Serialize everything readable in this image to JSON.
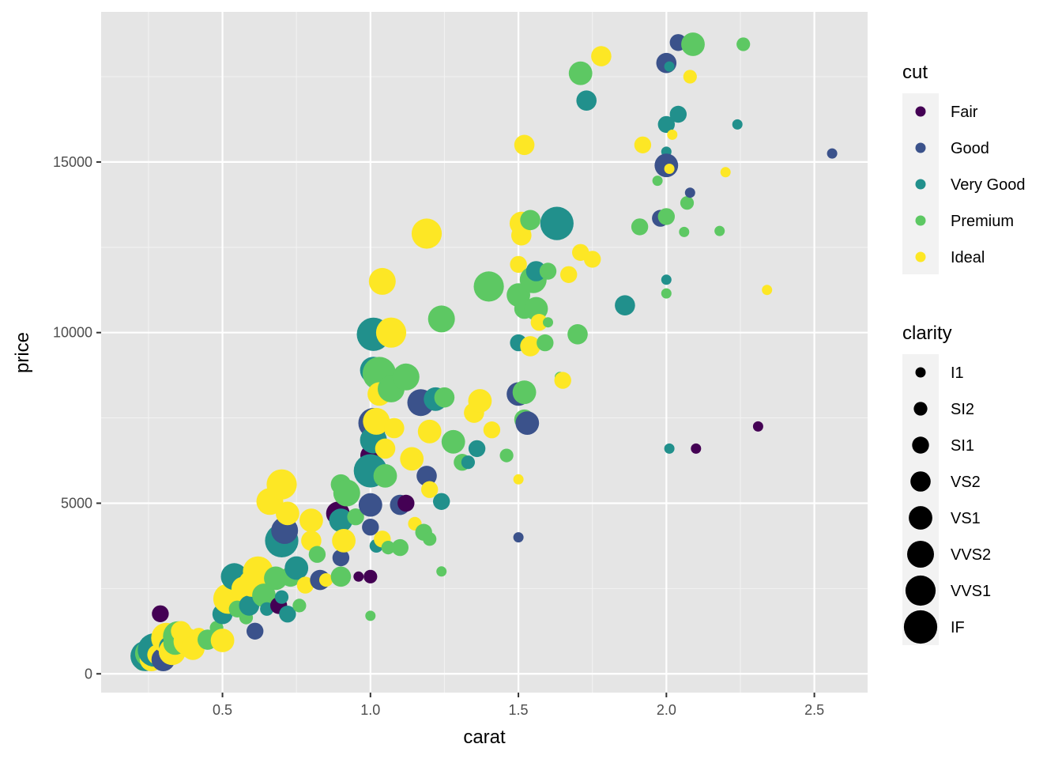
{
  "chart_data": {
    "type": "scatter",
    "xlabel": "carat",
    "ylabel": "price",
    "xlim": [
      0.09,
      2.68
    ],
    "ylim": [
      -550,
      19400
    ],
    "x_ticks": [
      0.5,
      1.0,
      1.5,
      2.0,
      2.5
    ],
    "x_tick_labels": [
      "0.5",
      "1.0",
      "1.5",
      "2.0",
      "2.5"
    ],
    "y_ticks": [
      0,
      5000,
      10000,
      15000
    ],
    "y_tick_labels": [
      "0",
      "5000",
      "10000",
      "15000"
    ],
    "grid": true,
    "background": "#e5e5e5",
    "color_legend": {
      "title": "cut",
      "position": "right",
      "entries": [
        {
          "label": "Fair",
          "color": "#440154"
        },
        {
          "label": "Good",
          "color": "#3b528b"
        },
        {
          "label": "Very Good",
          "color": "#21908c"
        },
        {
          "label": "Premium",
          "color": "#5dc863"
        },
        {
          "label": "Ideal",
          "color": "#fde725"
        }
      ]
    },
    "size_legend": {
      "title": "clarity",
      "position": "right",
      "entries": [
        "I1",
        "SI2",
        "SI1",
        "VS2",
        "VS1",
        "VVS2",
        "VVS1",
        "IF"
      ]
    },
    "points": [
      {
        "x": 0.23,
        "y": 340,
        "cut": "Premium",
        "clarity": "SI1"
      },
      {
        "x": 0.24,
        "y": 520,
        "cut": "Very Good",
        "clarity": "VVS1"
      },
      {
        "x": 0.25,
        "y": 600,
        "cut": "Premium",
        "clarity": "VVS2"
      },
      {
        "x": 0.26,
        "y": 420,
        "cut": "Ideal",
        "clarity": "VS1"
      },
      {
        "x": 0.27,
        "y": 700,
        "cut": "Very Good",
        "clarity": "IF"
      },
      {
        "x": 0.28,
        "y": 560,
        "cut": "Ideal",
        "clarity": "VS2"
      },
      {
        "x": 0.29,
        "y": 1760,
        "cut": "Fair",
        "clarity": "SI1"
      },
      {
        "x": 0.3,
        "y": 420,
        "cut": "Good",
        "clarity": "VS1"
      },
      {
        "x": 0.31,
        "y": 1050,
        "cut": "Ideal",
        "clarity": "VVS1"
      },
      {
        "x": 0.32,
        "y": 800,
        "cut": "Very Good",
        "clarity": "VS2"
      },
      {
        "x": 0.33,
        "y": 650,
        "cut": "Ideal",
        "clarity": "VVS2"
      },
      {
        "x": 0.34,
        "y": 900,
        "cut": "Premium",
        "clarity": "VS1"
      },
      {
        "x": 0.35,
        "y": 1100,
        "cut": "Premium",
        "clarity": "VVS1"
      },
      {
        "x": 0.36,
        "y": 1250,
        "cut": "Ideal",
        "clarity": "VS2"
      },
      {
        "x": 0.38,
        "y": 950,
        "cut": "Ideal",
        "clarity": "VVS2"
      },
      {
        "x": 0.4,
        "y": 750,
        "cut": "Ideal",
        "clarity": "VS1"
      },
      {
        "x": 0.42,
        "y": 1100,
        "cut": "Ideal",
        "clarity": "SI1"
      },
      {
        "x": 0.45,
        "y": 1000,
        "cut": "Premium",
        "clarity": "VS2"
      },
      {
        "x": 0.48,
        "y": 1350,
        "cut": "Premium",
        "clarity": "SI2"
      },
      {
        "x": 0.5,
        "y": 980,
        "cut": "Ideal",
        "clarity": "VS1"
      },
      {
        "x": 0.5,
        "y": 1750,
        "cut": "Very Good",
        "clarity": "VS2"
      },
      {
        "x": 0.52,
        "y": 2200,
        "cut": "Ideal",
        "clarity": "VVS1"
      },
      {
        "x": 0.54,
        "y": 2850,
        "cut": "Very Good",
        "clarity": "VVS2"
      },
      {
        "x": 0.55,
        "y": 1900,
        "cut": "Premium",
        "clarity": "SI1"
      },
      {
        "x": 0.57,
        "y": 2500,
        "cut": "Ideal",
        "clarity": "VS1"
      },
      {
        "x": 0.58,
        "y": 1650,
        "cut": "Premium",
        "clarity": "SI2"
      },
      {
        "x": 0.59,
        "y": 2000,
        "cut": "Very Good",
        "clarity": "VS2"
      },
      {
        "x": 0.6,
        "y": 2650,
        "cut": "Ideal",
        "clarity": "VVS2"
      },
      {
        "x": 0.61,
        "y": 1250,
        "cut": "Good",
        "clarity": "SI1"
      },
      {
        "x": 0.62,
        "y": 3000,
        "cut": "Ideal",
        "clarity": "VVS1"
      },
      {
        "x": 0.64,
        "y": 2300,
        "cut": "Premium",
        "clarity": "VS1"
      },
      {
        "x": 0.65,
        "y": 1900,
        "cut": "Very Good",
        "clarity": "SI2"
      },
      {
        "x": 0.66,
        "y": 5050,
        "cut": "Ideal",
        "clarity": "VVS2"
      },
      {
        "x": 0.68,
        "y": 2800,
        "cut": "Premium",
        "clarity": "VS1"
      },
      {
        "x": 0.69,
        "y": 2000,
        "cut": "Fair",
        "clarity": "SI1"
      },
      {
        "x": 0.7,
        "y": 5550,
        "cut": "Ideal",
        "clarity": "VVS1"
      },
      {
        "x": 0.7,
        "y": 3900,
        "cut": "Very Good",
        "clarity": "IF"
      },
      {
        "x": 0.7,
        "y": 2250,
        "cut": "Very Good",
        "clarity": "SI2"
      },
      {
        "x": 0.71,
        "y": 4200,
        "cut": "Good",
        "clarity": "VVS2"
      },
      {
        "x": 0.72,
        "y": 4700,
        "cut": "Ideal",
        "clarity": "VS1"
      },
      {
        "x": 0.72,
        "y": 1750,
        "cut": "Very Good",
        "clarity": "SI1"
      },
      {
        "x": 0.73,
        "y": 2850,
        "cut": "Premium",
        "clarity": "VS2"
      },
      {
        "x": 0.75,
        "y": 3100,
        "cut": "Very Good",
        "clarity": "VS1"
      },
      {
        "x": 0.76,
        "y": 2000,
        "cut": "Premium",
        "clarity": "SI2"
      },
      {
        "x": 0.78,
        "y": 2600,
        "cut": "Ideal",
        "clarity": "SI1"
      },
      {
        "x": 0.8,
        "y": 4500,
        "cut": "Ideal",
        "clarity": "VS1"
      },
      {
        "x": 0.8,
        "y": 3900,
        "cut": "Ideal",
        "clarity": "VS2"
      },
      {
        "x": 0.82,
        "y": 3500,
        "cut": "Premium",
        "clarity": "SI1"
      },
      {
        "x": 0.83,
        "y": 2750,
        "cut": "Good",
        "clarity": "VS2"
      },
      {
        "x": 0.85,
        "y": 2750,
        "cut": "Ideal",
        "clarity": "SI2"
      },
      {
        "x": 0.89,
        "y": 4700,
        "cut": "Fair",
        "clarity": "VS1"
      },
      {
        "x": 0.9,
        "y": 5550,
        "cut": "Premium",
        "clarity": "VS2"
      },
      {
        "x": 0.9,
        "y": 4500,
        "cut": "Very Good",
        "clarity": "VS1"
      },
      {
        "x": 0.9,
        "y": 3400,
        "cut": "Good",
        "clarity": "SI1"
      },
      {
        "x": 0.9,
        "y": 2850,
        "cut": "Premium",
        "clarity": "VS2"
      },
      {
        "x": 0.91,
        "y": 3900,
        "cut": "Ideal",
        "clarity": "VS1"
      },
      {
        "x": 0.92,
        "y": 5300,
        "cut": "Premium",
        "clarity": "VVS2"
      },
      {
        "x": 0.95,
        "y": 4600,
        "cut": "Premium",
        "clarity": "SI1"
      },
      {
        "x": 0.96,
        "y": 2850,
        "cut": "Fair",
        "clarity": "I1"
      },
      {
        "x": 1.0,
        "y": 2850,
        "cut": "Fair",
        "clarity": "SI2"
      },
      {
        "x": 1.0,
        "y": 1700,
        "cut": "Premium",
        "clarity": "I1"
      },
      {
        "x": 1.0,
        "y": 6400,
        "cut": "Fair",
        "clarity": "VS2"
      },
      {
        "x": 1.0,
        "y": 5950,
        "cut": "Very Good",
        "clarity": "IF"
      },
      {
        "x": 1.0,
        "y": 4950,
        "cut": "Good",
        "clarity": "VS1"
      },
      {
        "x": 1.0,
        "y": 4300,
        "cut": "Good",
        "clarity": "SI1"
      },
      {
        "x": 1.01,
        "y": 9950,
        "cut": "Very Good",
        "clarity": "IF"
      },
      {
        "x": 1.01,
        "y": 8900,
        "cut": "Very Good",
        "clarity": "VVS2"
      },
      {
        "x": 1.01,
        "y": 7350,
        "cut": "Good",
        "clarity": "VVS1"
      },
      {
        "x": 1.01,
        "y": 6850,
        "cut": "Very Good",
        "clarity": "VVS2"
      },
      {
        "x": 1.02,
        "y": 7400,
        "cut": "Ideal",
        "clarity": "VVS2"
      },
      {
        "x": 1.02,
        "y": 3750,
        "cut": "Very Good",
        "clarity": "SI2"
      },
      {
        "x": 1.03,
        "y": 8800,
        "cut": "Premium",
        "clarity": "IF"
      },
      {
        "x": 1.03,
        "y": 8200,
        "cut": "Ideal",
        "clarity": "VS1"
      },
      {
        "x": 1.04,
        "y": 11500,
        "cut": "Ideal",
        "clarity": "VVS2"
      },
      {
        "x": 1.04,
        "y": 3950,
        "cut": "Ideal",
        "clarity": "SI1"
      },
      {
        "x": 1.05,
        "y": 6600,
        "cut": "Ideal",
        "clarity": "VS2"
      },
      {
        "x": 1.05,
        "y": 5800,
        "cut": "Premium",
        "clarity": "VS1"
      },
      {
        "x": 1.06,
        "y": 3700,
        "cut": "Premium",
        "clarity": "SI2"
      },
      {
        "x": 1.07,
        "y": 10000,
        "cut": "Ideal",
        "clarity": "VVS1"
      },
      {
        "x": 1.07,
        "y": 8350,
        "cut": "Premium",
        "clarity": "VVS2"
      },
      {
        "x": 1.08,
        "y": 7200,
        "cut": "Ideal",
        "clarity": "VS2"
      },
      {
        "x": 1.1,
        "y": 4950,
        "cut": "Good",
        "clarity": "VS2"
      },
      {
        "x": 1.1,
        "y": 3700,
        "cut": "Premium",
        "clarity": "SI1"
      },
      {
        "x": 1.12,
        "y": 8700,
        "cut": "Premium",
        "clarity": "VVS2"
      },
      {
        "x": 1.12,
        "y": 5000,
        "cut": "Fair",
        "clarity": "SI1"
      },
      {
        "x": 1.14,
        "y": 6300,
        "cut": "Ideal",
        "clarity": "VS1"
      },
      {
        "x": 1.15,
        "y": 4400,
        "cut": "Ideal",
        "clarity": "SI2"
      },
      {
        "x": 1.17,
        "y": 7950,
        "cut": "Good",
        "clarity": "VVS2"
      },
      {
        "x": 1.18,
        "y": 4150,
        "cut": "Premium",
        "clarity": "SI1"
      },
      {
        "x": 1.19,
        "y": 12900,
        "cut": "Ideal",
        "clarity": "VVS1"
      },
      {
        "x": 1.19,
        "y": 5800,
        "cut": "Good",
        "clarity": "VS2"
      },
      {
        "x": 1.2,
        "y": 7100,
        "cut": "Ideal",
        "clarity": "VS1"
      },
      {
        "x": 1.2,
        "y": 5400,
        "cut": "Ideal",
        "clarity": "SI1"
      },
      {
        "x": 1.2,
        "y": 3950,
        "cut": "Premium",
        "clarity": "SI2"
      },
      {
        "x": 1.22,
        "y": 8050,
        "cut": "Very Good",
        "clarity": "VS1"
      },
      {
        "x": 1.24,
        "y": 10400,
        "cut": "Premium",
        "clarity": "VVS2"
      },
      {
        "x": 1.24,
        "y": 5050,
        "cut": "Very Good",
        "clarity": "SI1"
      },
      {
        "x": 1.24,
        "y": 3000,
        "cut": "Premium",
        "clarity": "I1"
      },
      {
        "x": 1.25,
        "y": 8100,
        "cut": "Premium",
        "clarity": "VS2"
      },
      {
        "x": 1.28,
        "y": 6800,
        "cut": "Premium",
        "clarity": "VS1"
      },
      {
        "x": 1.31,
        "y": 6200,
        "cut": "Premium",
        "clarity": "SI1"
      },
      {
        "x": 1.33,
        "y": 6200,
        "cut": "Very Good",
        "clarity": "SI2"
      },
      {
        "x": 1.35,
        "y": 7650,
        "cut": "Ideal",
        "clarity": "VS2"
      },
      {
        "x": 1.37,
        "y": 8000,
        "cut": "Ideal",
        "clarity": "VS1"
      },
      {
        "x": 1.36,
        "y": 6600,
        "cut": "Very Good",
        "clarity": "SI1"
      },
      {
        "x": 1.4,
        "y": 11350,
        "cut": "Premium",
        "clarity": "VVS1"
      },
      {
        "x": 1.41,
        "y": 7150,
        "cut": "Ideal",
        "clarity": "SI1"
      },
      {
        "x": 1.46,
        "y": 6400,
        "cut": "Premium",
        "clarity": "SI2"
      },
      {
        "x": 1.5,
        "y": 4000,
        "cut": "Good",
        "clarity": "I1"
      },
      {
        "x": 1.5,
        "y": 5700,
        "cut": "Ideal",
        "clarity": "I1"
      },
      {
        "x": 1.5,
        "y": 8200,
        "cut": "Good",
        "clarity": "VS1"
      },
      {
        "x": 1.5,
        "y": 9700,
        "cut": "Very Good",
        "clarity": "SI1"
      },
      {
        "x": 1.5,
        "y": 11100,
        "cut": "Premium",
        "clarity": "VS1"
      },
      {
        "x": 1.5,
        "y": 12000,
        "cut": "Ideal",
        "clarity": "SI1"
      },
      {
        "x": 1.51,
        "y": 12850,
        "cut": "Ideal",
        "clarity": "VS2"
      },
      {
        "x": 1.51,
        "y": 13200,
        "cut": "Ideal",
        "clarity": "VS1"
      },
      {
        "x": 1.52,
        "y": 15500,
        "cut": "Ideal",
        "clarity": "VS2"
      },
      {
        "x": 1.52,
        "y": 10700,
        "cut": "Premium",
        "clarity": "VS2"
      },
      {
        "x": 1.52,
        "y": 8250,
        "cut": "Premium",
        "clarity": "VS1"
      },
      {
        "x": 1.52,
        "y": 7450,
        "cut": "Premium",
        "clarity": "VS2"
      },
      {
        "x": 1.53,
        "y": 7350,
        "cut": "Good",
        "clarity": "VS1"
      },
      {
        "x": 1.54,
        "y": 9600,
        "cut": "Ideal",
        "clarity": "VS2"
      },
      {
        "x": 1.54,
        "y": 13300,
        "cut": "Premium",
        "clarity": "VS2"
      },
      {
        "x": 1.55,
        "y": 11550,
        "cut": "Premium",
        "clarity": "VVS2"
      },
      {
        "x": 1.56,
        "y": 11800,
        "cut": "Very Good",
        "clarity": "VS2"
      },
      {
        "x": 1.56,
        "y": 10700,
        "cut": "Premium",
        "clarity": "VS1"
      },
      {
        "x": 1.57,
        "y": 10300,
        "cut": "Ideal",
        "clarity": "SI1"
      },
      {
        "x": 1.59,
        "y": 9700,
        "cut": "Premium",
        "clarity": "SI1"
      },
      {
        "x": 1.6,
        "y": 10300,
        "cut": "Premium",
        "clarity": "I1"
      },
      {
        "x": 1.6,
        "y": 11800,
        "cut": "Premium",
        "clarity": "SI1"
      },
      {
        "x": 1.63,
        "y": 13200,
        "cut": "Very Good",
        "clarity": "IF"
      },
      {
        "x": 1.64,
        "y": 8700,
        "cut": "Premium",
        "clarity": "I1"
      },
      {
        "x": 1.65,
        "y": 8600,
        "cut": "Ideal",
        "clarity": "SI1"
      },
      {
        "x": 1.67,
        "y": 11700,
        "cut": "Ideal",
        "clarity": "SI1"
      },
      {
        "x": 1.7,
        "y": 9950,
        "cut": "Premium",
        "clarity": "VS2"
      },
      {
        "x": 1.71,
        "y": 12350,
        "cut": "Ideal",
        "clarity": "SI1"
      },
      {
        "x": 1.71,
        "y": 17600,
        "cut": "Premium",
        "clarity": "VS1"
      },
      {
        "x": 1.73,
        "y": 16800,
        "cut": "Very Good",
        "clarity": "VS2"
      },
      {
        "x": 1.75,
        "y": 12150,
        "cut": "Ideal",
        "clarity": "SI1"
      },
      {
        "x": 1.78,
        "y": 18100,
        "cut": "Ideal",
        "clarity": "VS2"
      },
      {
        "x": 1.86,
        "y": 10800,
        "cut": "Very Good",
        "clarity": "VS2"
      },
      {
        "x": 1.91,
        "y": 13100,
        "cut": "Premium",
        "clarity": "SI1"
      },
      {
        "x": 1.92,
        "y": 15500,
        "cut": "Ideal",
        "clarity": "SI1"
      },
      {
        "x": 1.97,
        "y": 14450,
        "cut": "Premium",
        "clarity": "I1"
      },
      {
        "x": 1.98,
        "y": 13350,
        "cut": "Good",
        "clarity": "SI1"
      },
      {
        "x": 2.0,
        "y": 17900,
        "cut": "Good",
        "clarity": "VS2"
      },
      {
        "x": 2.0,
        "y": 16100,
        "cut": "Very Good",
        "clarity": "SI1"
      },
      {
        "x": 2.0,
        "y": 15300,
        "cut": "Very Good",
        "clarity": "I1"
      },
      {
        "x": 2.0,
        "y": 14900,
        "cut": "Good",
        "clarity": "VS1"
      },
      {
        "x": 2.0,
        "y": 13400,
        "cut": "Premium",
        "clarity": "SI1"
      },
      {
        "x": 2.0,
        "y": 11550,
        "cut": "Very Good",
        "clarity": "I1"
      },
      {
        "x": 2.0,
        "y": 11150,
        "cut": "Premium",
        "clarity": "I1"
      },
      {
        "x": 2.01,
        "y": 6600,
        "cut": "Very Good",
        "clarity": "I1"
      },
      {
        "x": 2.01,
        "y": 17800,
        "cut": "Very Good",
        "clarity": "I1"
      },
      {
        "x": 2.01,
        "y": 14800,
        "cut": "Ideal",
        "clarity": "I1"
      },
      {
        "x": 2.02,
        "y": 15800,
        "cut": "Ideal",
        "clarity": "I1"
      },
      {
        "x": 2.04,
        "y": 18500,
        "cut": "Good",
        "clarity": "SI1"
      },
      {
        "x": 2.04,
        "y": 16400,
        "cut": "Very Good",
        "clarity": "SI1"
      },
      {
        "x": 2.06,
        "y": 12950,
        "cut": "Premium",
        "clarity": "I1"
      },
      {
        "x": 2.07,
        "y": 13800,
        "cut": "Premium",
        "clarity": "SI2"
      },
      {
        "x": 2.08,
        "y": 17500,
        "cut": "Ideal",
        "clarity": "SI2"
      },
      {
        "x": 2.08,
        "y": 14100,
        "cut": "Good",
        "clarity": "I1"
      },
      {
        "x": 2.09,
        "y": 18450,
        "cut": "Premium",
        "clarity": "VS1"
      },
      {
        "x": 2.1,
        "y": 6600,
        "cut": "Fair",
        "clarity": "I1"
      },
      {
        "x": 2.18,
        "y": 12980,
        "cut": "Premium",
        "clarity": "I1"
      },
      {
        "x": 2.2,
        "y": 14700,
        "cut": "Ideal",
        "clarity": "I1"
      },
      {
        "x": 2.24,
        "y": 16100,
        "cut": "Very Good",
        "clarity": "I1"
      },
      {
        "x": 2.26,
        "y": 18450,
        "cut": "Premium",
        "clarity": "SI2"
      },
      {
        "x": 2.31,
        "y": 7250,
        "cut": "Fair",
        "clarity": "I1"
      },
      {
        "x": 2.34,
        "y": 11250,
        "cut": "Ideal",
        "clarity": "I1"
      },
      {
        "x": 2.56,
        "y": 15250,
        "cut": "Good",
        "clarity": "I1"
      }
    ]
  }
}
